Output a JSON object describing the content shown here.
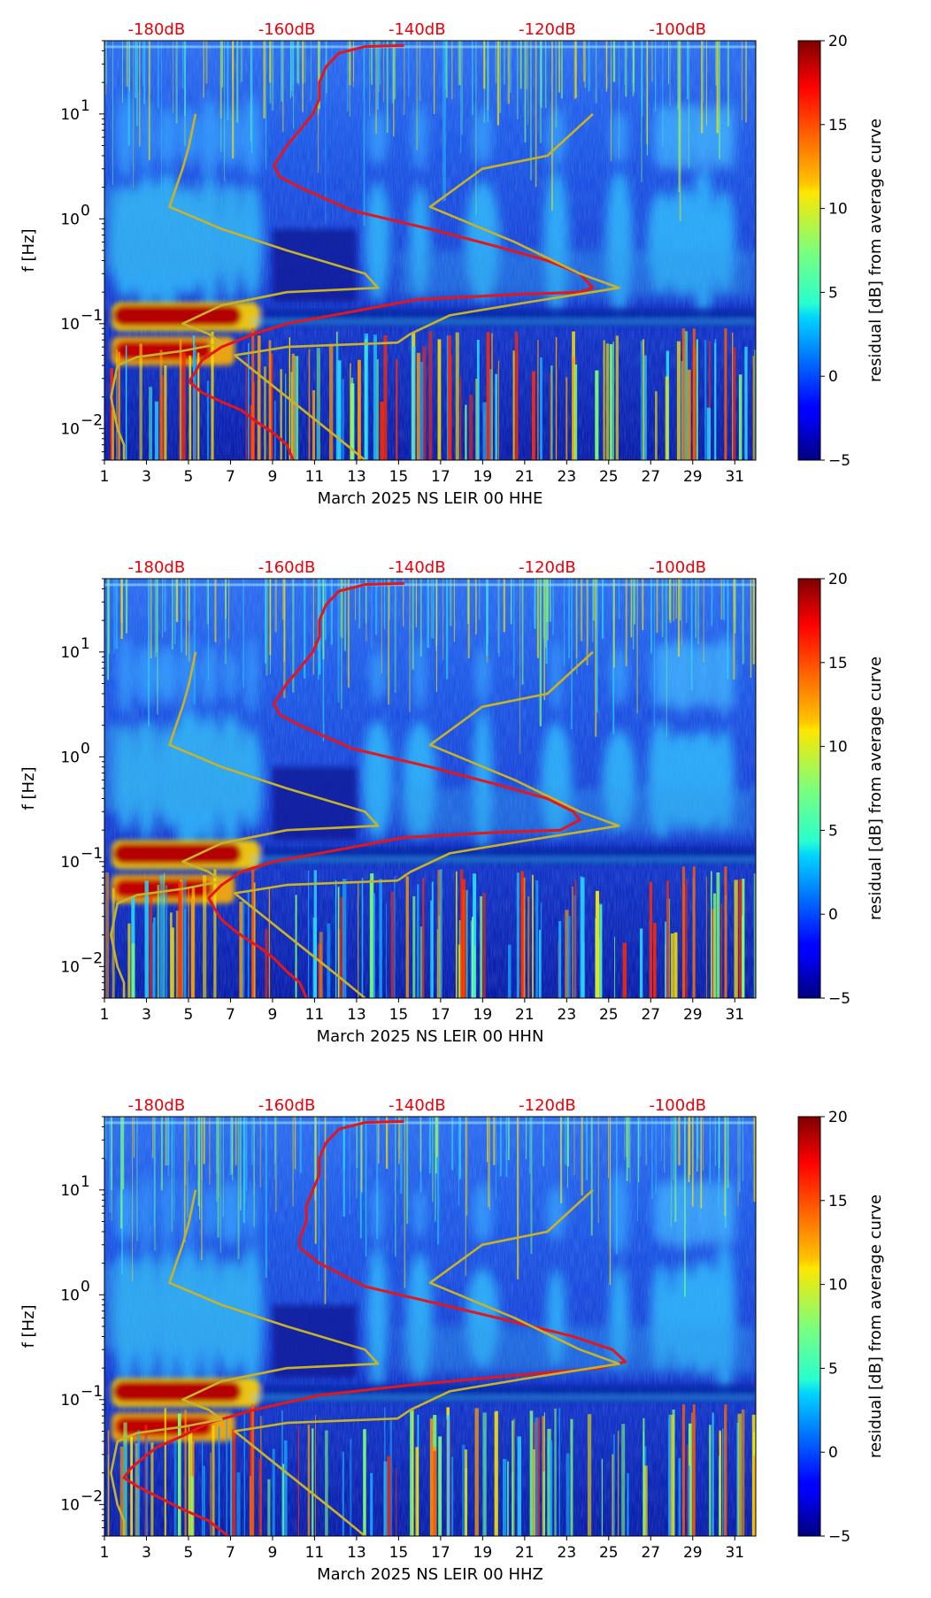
{
  "figure": {
    "background": "#ffffff",
    "colormap": "jet",
    "curve_colors": {
      "db_curve": "#e3161b",
      "model_curves": "#c8b227"
    }
  },
  "chart_data": [
    {
      "type": "heatmap",
      "xlabel": "March 2025 NS LEIR 00 HHE",
      "ylabel": "f [Hz]",
      "colorbar_label": "residual [dB] from average curve",
      "x_ticks": [
        "1",
        "3",
        "5",
        "7",
        "9",
        "11",
        "13",
        "15",
        "17",
        "19",
        "21",
        "23",
        "25",
        "27",
        "29",
        "31"
      ],
      "xlim": [
        1,
        32
      ],
      "ylim": [
        0.005,
        50
      ],
      "yscale": "log",
      "y_ticks": [
        {
          "value": 0.01,
          "base": "10",
          "exp": "−2"
        },
        {
          "value": 0.1,
          "base": "10",
          "exp": "−1"
        },
        {
          "value": 1,
          "base": "10",
          "exp": "0"
        },
        {
          "value": 10,
          "base": "10",
          "exp": "1"
        }
      ],
      "db_axis": {
        "ticks": [
          "-180dB",
          "-160dB",
          "-140dB",
          "-120dB",
          "-100dB"
        ],
        "range": [
          -188,
          -88
        ]
      },
      "colorbar": {
        "min": -5,
        "max": 20,
        "ticks": [
          "20",
          "15",
          "10",
          "5",
          "0",
          "−5"
        ]
      },
      "series": [
        {
          "points": [
            [
              -142,
              45
            ],
            [
              -148,
              44
            ],
            [
              -152,
              38
            ],
            [
              -154,
              28
            ],
            [
              -155,
              20
            ],
            [
              -155,
              14
            ],
            [
              -156,
              10
            ],
            [
              -158,
              7
            ],
            [
              -160,
              5
            ],
            [
              -162,
              3.2
            ],
            [
              -161,
              2.5
            ],
            [
              -158,
              2
            ],
            [
              -150,
              1.2
            ],
            [
              -138,
              0.8
            ],
            [
              -128,
              0.55
            ],
            [
              -120,
              0.4
            ],
            [
              -115,
              0.3
            ],
            [
              -113,
              0.22
            ],
            [
              -115,
              0.2
            ],
            [
              -125,
              0.19
            ],
            [
              -140,
              0.17
            ],
            [
              -150,
              0.13
            ],
            [
              -160,
              0.1
            ],
            [
              -165,
              0.08
            ],
            [
              -170,
              0.06
            ],
            [
              -173,
              0.045
            ],
            [
              -174,
              0.035
            ],
            [
              -175,
              0.028
            ],
            [
              -173,
              0.022
            ],
            [
              -170,
              0.018
            ],
            [
              -167,
              0.015
            ],
            [
              -165,
              0.012
            ],
            [
              -162,
              0.009
            ],
            [
              -160,
              0.007
            ],
            [
              -159,
              0.005
            ]
          ]
        },
        {
          "points": [
            [
              -174,
              10
            ],
            [
              -175,
              5
            ],
            [
              -176,
              3
            ],
            [
              -177,
              2
            ],
            [
              -178,
              1.3
            ],
            [
              -170,
              0.8
            ],
            [
              -160,
              0.5
            ],
            [
              -148,
              0.3
            ],
            [
              -146,
              0.22
            ],
            [
              -160,
              0.2
            ],
            [
              -170,
              0.15
            ],
            [
              -176,
              0.1
            ],
            [
              -172,
              0.08
            ],
            [
              -170,
              0.065
            ],
            [
              -176,
              0.055
            ],
            [
              -183,
              0.048
            ],
            [
              -186,
              0.04
            ],
            [
              -187,
              0.02
            ],
            [
              -186,
              0.01
            ],
            [
              -185,
              0.007
            ],
            [
              -185,
              0.005
            ]
          ]
        },
        {
          "points": [
            [
              -113,
              10
            ],
            [
              -120,
              4
            ],
            [
              -130,
              3
            ],
            [
              -138,
              1.3
            ],
            [
              -125,
              0.6
            ],
            [
              -115,
              0.3
            ],
            [
              -109,
              0.22
            ],
            [
              -123,
              0.16
            ],
            [
              -135,
              0.12
            ],
            [
              -141,
              0.08
            ],
            [
              -143,
              0.066
            ],
            [
              -160,
              0.06
            ],
            [
              -168,
              0.05
            ],
            [
              -160,
              0.02
            ],
            [
              -152,
              0.008
            ],
            [
              -148,
              0.005
            ]
          ]
        }
      ]
    },
    {
      "type": "heatmap",
      "xlabel": "March 2025 NS LEIR 00 HHN",
      "ylabel": "f [Hz]",
      "colorbar_label": "residual [dB] from average curve",
      "x_ticks": [
        "1",
        "3",
        "5",
        "7",
        "9",
        "11",
        "13",
        "15",
        "17",
        "19",
        "21",
        "23",
        "25",
        "27",
        "29",
        "31"
      ],
      "xlim": [
        1,
        32
      ],
      "ylim": [
        0.005,
        50
      ],
      "yscale": "log",
      "y_ticks": [
        {
          "value": 0.01,
          "base": "10",
          "exp": "−2"
        },
        {
          "value": 0.1,
          "base": "10",
          "exp": "−1"
        },
        {
          "value": 1,
          "base": "10",
          "exp": "0"
        },
        {
          "value": 10,
          "base": "10",
          "exp": "1"
        }
      ],
      "db_axis": {
        "ticks": [
          "-180dB",
          "-160dB",
          "-140dB",
          "-120dB",
          "-100dB"
        ],
        "range": [
          -188,
          -88
        ]
      },
      "colorbar": {
        "min": -5,
        "max": 20,
        "ticks": [
          "20",
          "15",
          "10",
          "5",
          "0",
          "−5"
        ]
      },
      "series": [
        {
          "points": [
            [
              -142,
              45
            ],
            [
              -148,
              44
            ],
            [
              -152,
              38
            ],
            [
              -154,
              28
            ],
            [
              -155,
              20
            ],
            [
              -155,
              14
            ],
            [
              -156,
              10
            ],
            [
              -158,
              7
            ],
            [
              -160,
              5
            ],
            [
              -162,
              3.2
            ],
            [
              -161,
              2.5
            ],
            [
              -158,
              2
            ],
            [
              -150,
              1.2
            ],
            [
              -138,
              0.8
            ],
            [
              -128,
              0.55
            ],
            [
              -120,
              0.4
            ],
            [
              -116,
              0.3
            ],
            [
              -115,
              0.25
            ],
            [
              -118,
              0.2
            ],
            [
              -128,
              0.19
            ],
            [
              -142,
              0.17
            ],
            [
              -152,
              0.13
            ],
            [
              -162,
              0.1
            ],
            [
              -167,
              0.08
            ],
            [
              -170,
              0.06
            ],
            [
              -172,
              0.045
            ],
            [
              -171,
              0.035
            ],
            [
              -170,
              0.028
            ],
            [
              -168,
              0.022
            ],
            [
              -166,
              0.018
            ],
            [
              -164,
              0.015
            ],
            [
              -162,
              0.012
            ],
            [
              -160,
              0.009
            ],
            [
              -158,
              0.007
            ],
            [
              -157,
              0.005
            ]
          ]
        },
        {
          "points": [
            [
              -174,
              10
            ],
            [
              -175,
              5
            ],
            [
              -176,
              3
            ],
            [
              -177,
              2
            ],
            [
              -178,
              1.3
            ],
            [
              -170,
              0.8
            ],
            [
              -160,
              0.5
            ],
            [
              -148,
              0.3
            ],
            [
              -146,
              0.22
            ],
            [
              -160,
              0.2
            ],
            [
              -170,
              0.15
            ],
            [
              -176,
              0.1
            ],
            [
              -172,
              0.08
            ],
            [
              -170,
              0.065
            ],
            [
              -176,
              0.055
            ],
            [
              -183,
              0.048
            ],
            [
              -186,
              0.04
            ],
            [
              -187,
              0.02
            ],
            [
              -186,
              0.01
            ],
            [
              -185,
              0.007
            ],
            [
              -185,
              0.005
            ]
          ]
        },
        {
          "points": [
            [
              -113,
              10
            ],
            [
              -120,
              4
            ],
            [
              -130,
              3
            ],
            [
              -138,
              1.3
            ],
            [
              -125,
              0.6
            ],
            [
              -115,
              0.3
            ],
            [
              -109,
              0.22
            ],
            [
              -123,
              0.16
            ],
            [
              -135,
              0.12
            ],
            [
              -141,
              0.08
            ],
            [
              -143,
              0.066
            ],
            [
              -160,
              0.06
            ],
            [
              -168,
              0.05
            ],
            [
              -160,
              0.02
            ],
            [
              -152,
              0.008
            ],
            [
              -148,
              0.005
            ]
          ]
        }
      ]
    },
    {
      "type": "heatmap",
      "xlabel": "March 2025 NS LEIR 00 HHZ",
      "ylabel": "f [Hz]",
      "colorbar_label": "residual [dB] from average curve",
      "x_ticks": [
        "1",
        "3",
        "5",
        "7",
        "9",
        "11",
        "13",
        "15",
        "17",
        "19",
        "21",
        "23",
        "25",
        "27",
        "29",
        "31"
      ],
      "xlim": [
        1,
        32
      ],
      "ylim": [
        0.005,
        50
      ],
      "yscale": "log",
      "y_ticks": [
        {
          "value": 0.01,
          "base": "10",
          "exp": "−2"
        },
        {
          "value": 0.1,
          "base": "10",
          "exp": "−1"
        },
        {
          "value": 1,
          "base": "10",
          "exp": "0"
        },
        {
          "value": 10,
          "base": "10",
          "exp": "1"
        }
      ],
      "db_axis": {
        "ticks": [
          "-180dB",
          "-160dB",
          "-140dB",
          "-120dB",
          "-100dB"
        ],
        "range": [
          -188,
          -88
        ]
      },
      "colorbar": {
        "min": -5,
        "max": 20,
        "ticks": [
          "20",
          "15",
          "10",
          "5",
          "0",
          "−5"
        ]
      },
      "series": [
        {
          "points": [
            [
              -142,
              45
            ],
            [
              -148,
              44
            ],
            [
              -152,
              38
            ],
            [
              -154,
              28
            ],
            [
              -155,
              20
            ],
            [
              -155,
              14
            ],
            [
              -156,
              10
            ],
            [
              -157,
              7
            ],
            [
              -157,
              5
            ],
            [
              -158,
              3.5
            ],
            [
              -158,
              2.8
            ],
            [
              -155,
              2
            ],
            [
              -148,
              1.2
            ],
            [
              -136,
              0.8
            ],
            [
              -125,
              0.55
            ],
            [
              -116,
              0.4
            ],
            [
              -110,
              0.3
            ],
            [
              -108,
              0.23
            ],
            [
              -112,
              0.2
            ],
            [
              -125,
              0.17
            ],
            [
              -140,
              0.14
            ],
            [
              -155,
              0.11
            ],
            [
              -165,
              0.08
            ],
            [
              -172,
              0.06
            ],
            [
              -176,
              0.045
            ],
            [
              -180,
              0.035
            ],
            [
              -182,
              0.028
            ],
            [
              -184,
              0.022
            ],
            [
              -185,
              0.018
            ],
            [
              -183,
              0.015
            ],
            [
              -180,
              0.012
            ],
            [
              -176,
              0.009
            ],
            [
              -172,
              0.007
            ],
            [
              -169,
              0.005
            ]
          ]
        },
        {
          "points": [
            [
              -174,
              10
            ],
            [
              -175,
              5
            ],
            [
              -176,
              3
            ],
            [
              -177,
              2
            ],
            [
              -178,
              1.3
            ],
            [
              -170,
              0.8
            ],
            [
              -160,
              0.5
            ],
            [
              -148,
              0.3
            ],
            [
              -146,
              0.22
            ],
            [
              -160,
              0.2
            ],
            [
              -170,
              0.15
            ],
            [
              -176,
              0.1
            ],
            [
              -172,
              0.08
            ],
            [
              -170,
              0.065
            ],
            [
              -176,
              0.055
            ],
            [
              -183,
              0.048
            ],
            [
              -186,
              0.04
            ],
            [
              -187,
              0.02
            ],
            [
              -186,
              0.01
            ],
            [
              -185,
              0.007
            ],
            [
              -185,
              0.005
            ]
          ]
        },
        {
          "points": [
            [
              -113,
              10
            ],
            [
              -120,
              4
            ],
            [
              -130,
              3
            ],
            [
              -138,
              1.3
            ],
            [
              -125,
              0.6
            ],
            [
              -115,
              0.3
            ],
            [
              -109,
              0.22
            ],
            [
              -123,
              0.16
            ],
            [
              -135,
              0.12
            ],
            [
              -141,
              0.08
            ],
            [
              -143,
              0.066
            ],
            [
              -160,
              0.06
            ],
            [
              -168,
              0.05
            ],
            [
              -160,
              0.02
            ],
            [
              -152,
              0.008
            ],
            [
              -148,
              0.005
            ]
          ]
        }
      ]
    }
  ]
}
